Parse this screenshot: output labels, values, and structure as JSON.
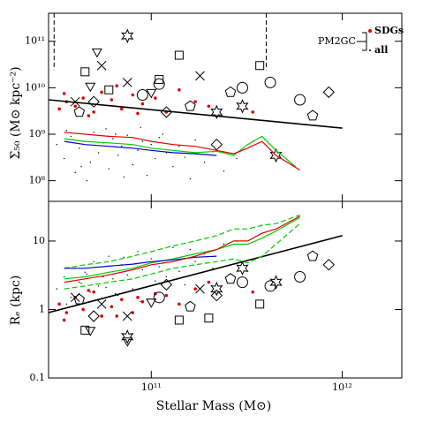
{
  "chart_data": [
    {
      "type": "scatter",
      "log_x": true,
      "log_y": true,
      "xlim": [
        29000000000.0,
        2050000000000.0
      ],
      "ylim": [
        36000000.0,
        400000000000.0
      ],
      "xticks": [
        100000000000.0,
        1000000000000.0
      ],
      "show_xtick_labels": false,
      "yticks": [
        {
          "value": 100000000.0,
          "label": "10⁸"
        },
        {
          "value": 1000000000.0,
          "label": "10⁹"
        },
        {
          "value": 10000000000.0,
          "label": "10¹⁰"
        },
        {
          "value": 100000000000.0,
          "label": "10¹¹"
        }
      ],
      "ylabel": "Σ₅₀ (M⊙ kpc⁻²)",
      "legend_title": "PM2GC",
      "legend": "upper right",
      "vlines": [
        31000000000.0,
        400000000000.0
      ],
      "vline_bottom": 24000000000.0,
      "series": [
        {
          "name": "all",
          "kind": "points",
          "marker": "dot",
          "color": "#000000",
          "x": [
            32000000000.0,
            35000000000.0,
            38000000000.0,
            40000000000.0,
            42000000000.0,
            45000000000.0,
            48000000000.0,
            50000000000.0,
            53000000000.0,
            56000000000.0,
            60000000000.0,
            63000000000.0,
            67000000000.0,
            70000000000.0,
            75000000000.0,
            80000000000.0,
            85000000000.0,
            90000000000.0,
            95000000000.0,
            100000000000.0,
            105000000000.0,
            110000000000.0,
            120000000000.0,
            130000000000.0,
            140000000000.0,
            150000000000.0,
            170000000000.0,
            190000000000.0,
            210000000000.0,
            240000000000.0,
            36000000000.0,
            46000000000.0,
            58000000000.0,
            72000000000.0,
            88000000000.0,
            115000000000.0,
            160000000000.0,
            280000000000.0,
            43000000000.0,
            65000000000.0
          ],
          "values": [
            600000000.0,
            300000000.0,
            900000000.0,
            150000000.0,
            500000000.0,
            700000000.0,
            250000000.0,
            1100000000.0,
            400000000.0,
            650000000.0,
            180000000.0,
            800000000.0,
            350000000.0,
            550000000.0,
            950000000.0,
            220000000.0,
            450000000.0,
            700000000.0,
            130000000.0,
            600000000.0,
            300000000.0,
            850000000.0,
            400000000.0,
            200000000.0,
            550000000.0,
            320000000.0,
            750000000.0,
            250000000.0,
            420000000.0,
            160000000.0,
            1200000000.0,
            100000000.0,
            1300000000.0,
            120000000.0,
            1400000000.0,
            1000000000.0,
            110000000.0,
            300000000.0,
            200000000.0,
            1000000000.0
          ]
        },
        {
          "name": "SDGs",
          "kind": "points",
          "marker": "dot-big",
          "color": "#e00000",
          "x": [
            33000000000.0,
            36000000000.0,
            40000000000.0,
            44000000000.0,
            50000000000.0,
            55000000000.0,
            62000000000.0,
            70000000000.0,
            80000000000.0,
            90000000000.0,
            105000000000.0,
            120000000000.0,
            140000000000.0,
            170000000000.0,
            200000000000.0,
            35000000000.0,
            47000000000.0,
            66000000000.0,
            85000000000.0,
            340000000000.0
          ],
          "values": [
            3500000000.0,
            5000000000.0,
            4000000000.0,
            6000000000.0,
            3000000000.0,
            8000000000.0,
            5500000000.0,
            3500000000.0,
            7000000000.0,
            4500000000.0,
            6000000000.0,
            3000000000.0,
            9000000000.0,
            5000000000.0,
            4000000000.0,
            7500000000.0,
            2500000000.0,
            11000000000.0,
            2800000000.0,
            3000000000.0
          ]
        },
        {
          "kind": "points",
          "marker": "square",
          "color": "#000000",
          "x": [
            45000000000.0,
            140000000000.0,
            370000000000.0,
            110000000000.0,
            60000000000.0
          ],
          "values": [
            22000000000.0,
            50000000000.0,
            30000000000.0,
            15000000000.0,
            9000000000.0
          ]
        },
        {
          "kind": "points",
          "marker": "circle",
          "color": "#000000",
          "x": [
            110000000000.0,
            300000000000.0,
            600000000000.0,
            420000000000.0,
            90000000000.0
          ],
          "values": [
            12000000000.0,
            10000000000.0,
            5500000000.0,
            13000000000.0,
            7000000000.0
          ]
        },
        {
          "kind": "points",
          "marker": "cross",
          "color": "#000000",
          "x": [
            55000000000.0,
            75000000000.0,
            180000000000.0,
            40000000000.0
          ],
          "values": [
            30000000000.0,
            13000000000.0,
            18000000000.0,
            5000000000.0
          ]
        },
        {
          "kind": "points",
          "marker": "triangle",
          "color": "#000000",
          "x": [
            48000000000.0,
            100000000000.0,
            52000000000.0
          ],
          "values": [
            11000000000.0,
            8000000000.0,
            60000000000.0
          ]
        },
        {
          "kind": "points",
          "marker": "star",
          "color": "#000000",
          "x": [
            75000000000.0,
            300000000000.0,
            220000000000.0,
            450000000000.0
          ],
          "values": [
            130000000000.0,
            4000000000.0,
            3000000000.0,
            350000000.0
          ]
        },
        {
          "kind": "points",
          "marker": "pentagon",
          "color": "#000000",
          "x": [
            42000000000.0,
            160000000000.0,
            700000000000.0,
            260000000000.0
          ],
          "values": [
            3000000000.0,
            4000000000.0,
            2500000000.0,
            8000000000.0
          ]
        },
        {
          "kind": "points",
          "marker": "diamond",
          "color": "#000000",
          "x": [
            50000000000.0,
            850000000000.0,
            220000000000.0,
            120000000000.0
          ],
          "values": [
            5000000000.0,
            8000000000.0,
            600000000.0,
            3000000000.0
          ]
        },
        {
          "kind": "line",
          "color": "#000000",
          "width": 1.6,
          "x": [
            29000000000.0,
            1000000000000.0
          ],
          "values": [
            5500000000.0,
            1350000000.0
          ]
        },
        {
          "kind": "line",
          "color": "#00cc00",
          "width": 1.2,
          "x": [
            35000000000.0,
            45000000000.0,
            60000000000.0,
            80000000000.0,
            100000000000.0,
            130000000000.0,
            170000000000.0,
            220000000000.0,
            270000000000.0,
            320000000000.0,
            380000000000.0,
            450000000000.0,
            570000000000.0
          ],
          "values": [
            800000000.0,
            700000000.0,
            650000000.0,
            600000000.0,
            500000000.0,
            450000000.0,
            400000000.0,
            430000000.0,
            350000000.0,
            600000000.0,
            900000000.0,
            450000000.0,
            200000000.0
          ]
        },
        {
          "kind": "line",
          "color": "#0000cc",
          "width": 1.2,
          "x": [
            35000000000.0,
            45000000000.0,
            60000000000.0,
            80000000000.0,
            100000000000.0,
            130000000000.0,
            170000000000.0,
            220000000000.0
          ],
          "values": [
            700000000.0,
            600000000.0,
            550000000.0,
            500000000.0,
            450000000.0,
            400000000.0,
            380000000.0,
            350000000.0
          ]
        },
        {
          "kind": "line",
          "color": "#e00000",
          "width": 1.2,
          "x": [
            35000000000.0,
            45000000000.0,
            60000000000.0,
            80000000000.0,
            100000000000.0,
            130000000000.0,
            170000000000.0,
            220000000000.0,
            270000000000.0,
            320000000000.0,
            380000000000.0,
            450000000000.0,
            600000000000.0
          ],
          "values": [
            1100000000.0,
            1000000000.0,
            900000000.0,
            850000000.0,
            700000000.0,
            600000000.0,
            550000000.0,
            450000000.0,
            380000000.0,
            500000000.0,
            700000000.0,
            350000000.0,
            170000000.0
          ]
        }
      ]
    },
    {
      "type": "scatter",
      "log_x": true,
      "log_y": true,
      "xlim": [
        29000000000.0,
        2050000000000.0
      ],
      "ylim": [
        0.1,
        38
      ],
      "xticks": [
        {
          "value": 100000000000.0,
          "label": "10¹¹"
        },
        {
          "value": 1000000000000.0,
          "label": "10¹²"
        }
      ],
      "show_xtick_labels": true,
      "yticks": [
        0.1,
        1,
        10
      ],
      "xlabel": "Stellar Mass (M⊙)",
      "ylabel": "Rₑ (kpc)",
      "series": [
        {
          "kind": "points",
          "marker": "dot",
          "color": "#000000",
          "x": [
            32000000000.0,
            35000000000.0,
            38000000000.0,
            40000000000.0,
            42000000000.0,
            45000000000.0,
            48000000000.0,
            50000000000.0,
            53000000000.0,
            56000000000.0,
            60000000000.0,
            63000000000.0,
            67000000000.0,
            70000000000.0,
            75000000000.0,
            80000000000.0,
            85000000000.0,
            90000000000.0,
            95000000000.0,
            100000000000.0,
            105000000000.0,
            110000000000.0,
            120000000000.0,
            130000000000.0,
            140000000000.0,
            150000000000.0,
            170000000000.0,
            190000000000.0,
            210000000000.0,
            240000000000.0,
            36000000000.0,
            46000000000.0,
            58000000000.0,
            72000000000.0,
            88000000000.0,
            115000000000.0,
            160000000000.0,
            280000000000.0,
            43000000000.0,
            65000000000.0
          ],
          "values": [
            2,
            3,
            1.5,
            4,
            2.5,
            3.5,
            1.8,
            5,
            2.2,
            3,
            6,
            2.8,
            1.6,
            4.5,
            3.2,
            2,
            7,
            3.8,
            1.4,
            5.5,
            2.6,
            4.2,
            3,
            8,
            3.6,
            2.3,
            5,
            6.5,
            4,
            9,
            1.2,
            3.3,
            2.1,
            5.8,
            1.3,
            4.8,
            7.5,
            10,
            2.4,
            1.7
          ]
        },
        {
          "kind": "points",
          "marker": "dot-big",
          "color": "#e00000",
          "x": [
            33000000000.0,
            36000000000.0,
            40000000000.0,
            44000000000.0,
            50000000000.0,
            55000000000.0,
            62000000000.0,
            70000000000.0,
            80000000000.0,
            90000000000.0,
            105000000000.0,
            120000000000.0,
            140000000000.0,
            170000000000.0,
            200000000000.0,
            35000000000.0,
            47000000000.0,
            66000000000.0,
            85000000000.0,
            340000000000.0
          ],
          "values": [
            1.2,
            0.9,
            1.5,
            1,
            1.8,
            0.8,
            1.1,
            1.4,
            0.9,
            1.3,
            1.7,
            1.6,
            1.2,
            2,
            2.5,
            0.7,
            1.9,
            0.8,
            1.5,
            1.8
          ]
        },
        {
          "kind": "points",
          "marker": "square",
          "color": "#000000",
          "x": [
            45000000000.0,
            140000000000.0,
            370000000000.0,
            200000000000.0
          ],
          "values": [
            0.5,
            0.7,
            1.2,
            0.75
          ]
        },
        {
          "kind": "points",
          "marker": "circle",
          "color": "#000000",
          "x": [
            110000000000.0,
            300000000000.0,
            600000000000.0,
            420000000000.0
          ],
          "values": [
            1.5,
            2.5,
            3,
            2.2
          ]
        },
        {
          "kind": "points",
          "marker": "cross",
          "color": "#000000",
          "x": [
            55000000000.0,
            75000000000.0,
            180000000000.0,
            40000000000.0
          ],
          "values": [
            1.2,
            0.8,
            2,
            1.5
          ]
        },
        {
          "kind": "points",
          "marker": "triangle",
          "color": "#000000",
          "x": [
            48000000000.0,
            100000000000.0,
            75000000000.0
          ],
          "values": [
            0.5,
            1.3,
            0.35
          ]
        },
        {
          "kind": "points",
          "marker": "star",
          "color": "#000000",
          "x": [
            75000000000.0,
            300000000000.0,
            220000000000.0,
            450000000000.0
          ],
          "values": [
            0.4,
            4,
            2,
            2.5
          ]
        },
        {
          "kind": "points",
          "marker": "pentagon",
          "color": "#000000",
          "x": [
            42000000000.0,
            160000000000.0,
            700000000000.0,
            260000000000.0
          ],
          "values": [
            1.4,
            1.1,
            6,
            2.8
          ]
        },
        {
          "kind": "points",
          "marker": "diamond",
          "color": "#000000",
          "x": [
            50000000000.0,
            850000000000.0,
            220000000000.0,
            120000000000.0
          ],
          "values": [
            0.8,
            4.5,
            1.6,
            2.3
          ]
        },
        {
          "kind": "line",
          "color": "#000000",
          "width": 1.6,
          "x": [
            29000000000.0,
            1000000000000.0
          ],
          "values": [
            0.9,
            12
          ]
        },
        {
          "kind": "line",
          "color": "#00cc00",
          "width": 1.2,
          "dash": true,
          "x": [
            35000000000.0,
            45000000000.0,
            60000000000.0,
            80000000000.0,
            100000000000.0,
            130000000000.0,
            170000000000.0,
            220000000000.0,
            270000000000.0,
            320000000000.0,
            380000000000.0,
            450000000000.0,
            600000000000.0
          ],
          "values": [
            4,
            4.5,
            5,
            6,
            7,
            8.5,
            10,
            12,
            15,
            15,
            17,
            18,
            24
          ]
        },
        {
          "kind": "line",
          "color": "#00cc00",
          "width": 1.2,
          "dash": true,
          "x": [
            35000000000.0,
            45000000000.0,
            60000000000.0,
            80000000000.0,
            100000000000.0,
            130000000000.0,
            170000000000.0,
            220000000000.0,
            270000000000.0,
            320000000000.0,
            380000000000.0,
            450000000000.0,
            600000000000.0
          ],
          "values": [
            2,
            2.2,
            2.5,
            2.8,
            3.3,
            4,
            4.5,
            5,
            5.5,
            4.8,
            6,
            9,
            18
          ]
        },
        {
          "kind": "line",
          "color": "#00cc00",
          "width": 1.2,
          "x": [
            35000000000.0,
            45000000000.0,
            60000000000.0,
            80000000000.0,
            100000000000.0,
            130000000000.0,
            170000000000.0,
            220000000000.0,
            270000000000.0,
            320000000000.0,
            380000000000.0,
            450000000000.0,
            600000000000.0
          ],
          "values": [
            2.8,
            3,
            3.5,
            4,
            4.8,
            5.5,
            6.5,
            7.5,
            9,
            9,
            11,
            14,
            22
          ]
        },
        {
          "kind": "line",
          "color": "#0000cc",
          "width": 1.2,
          "x": [
            35000000000.0,
            45000000000.0,
            60000000000.0,
            80000000000.0,
            100000000000.0,
            130000000000.0,
            170000000000.0,
            220000000000.0
          ],
          "values": [
            4,
            4,
            4.3,
            4.6,
            5,
            5.3,
            5.8,
            6
          ]
        },
        {
          "kind": "line",
          "color": "#e00000",
          "width": 1.2,
          "x": [
            35000000000.0,
            45000000000.0,
            60000000000.0,
            80000000000.0,
            100000000000.0,
            130000000000.0,
            170000000000.0,
            220000000000.0,
            270000000000.0,
            320000000000.0,
            380000000000.0,
            450000000000.0,
            600000000000.0
          ],
          "values": [
            2.5,
            2.8,
            3.2,
            3.8,
            4.5,
            5,
            6,
            7.5,
            10,
            10,
            13,
            15,
            23
          ]
        }
      ]
    }
  ]
}
